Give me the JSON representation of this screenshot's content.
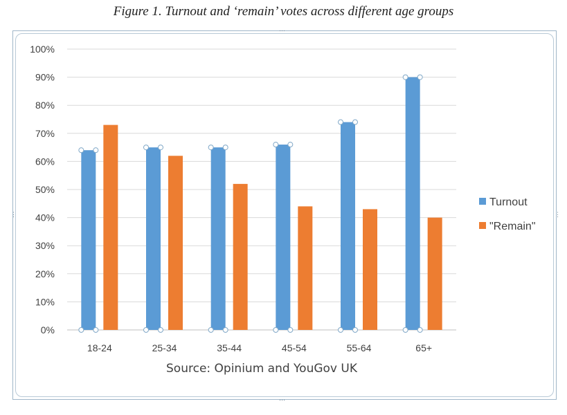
{
  "figure_title": "Figure 1. Turnout and ‘remain’ votes across different age groups",
  "colors": {
    "turnout": "#5b9bd5",
    "remain": "#ed7d31",
    "grid": "#d9d9d9",
    "axis": "#bfbfbf",
    "handles": "#7fa7c7"
  },
  "chart_data": {
    "type": "bar",
    "categories": [
      "18-24",
      "25-34",
      "35-44",
      "45-54",
      "55-64",
      "65+"
    ],
    "series": [
      {
        "name": "Turnout",
        "values": [
          64,
          65,
          65,
          66,
          74,
          90
        ]
      },
      {
        "name": "\"Remain\"",
        "values": [
          73,
          62,
          52,
          44,
          43,
          40
        ]
      }
    ],
    "ylim": [
      0,
      100
    ],
    "yticks": [
      "0%",
      "10%",
      "20%",
      "30%",
      "40%",
      "50%",
      "60%",
      "70%",
      "80%",
      "90%",
      "100%"
    ],
    "xlabel": "Source: Opinium and YouGov UK",
    "ylabel": "",
    "grid": true,
    "legend": "right"
  }
}
